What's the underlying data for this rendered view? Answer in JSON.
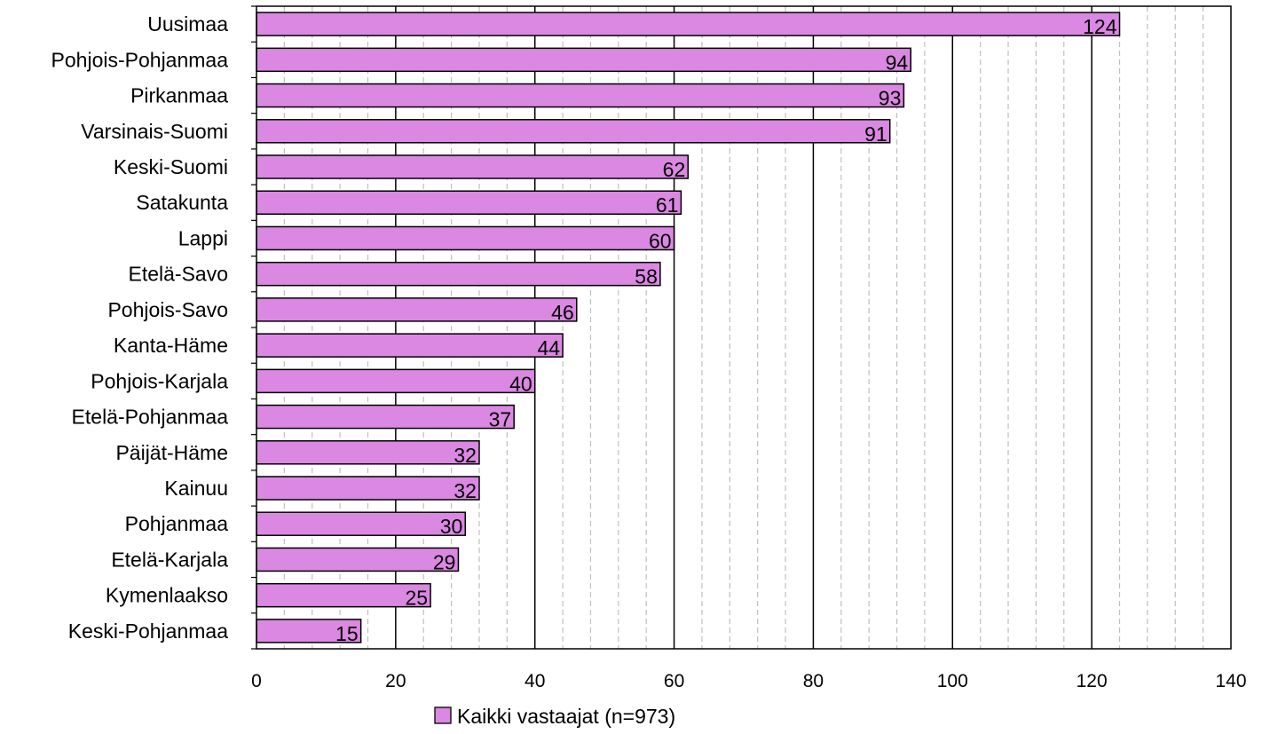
{
  "chart_data": {
    "type": "bar",
    "orientation": "horizontal",
    "categories": [
      "Uusimaa",
      "Pohjois-Pohjanmaa",
      "Pirkanmaa",
      "Varsinais-Suomi",
      "Keski-Suomi",
      "Satakunta",
      "Lappi",
      "Etelä-Savo",
      "Pohjois-Savo",
      "Kanta-Häme",
      "Pohjois-Karjala",
      "Etelä-Pohjanmaa",
      "Päijät-Häme",
      "Kainuu",
      "Pohjanmaa",
      "Etelä-Karjala",
      "Kymenlaakso",
      "Keski-Pohjanmaa"
    ],
    "series": [
      {
        "name": "Kaikki vastaajat (n=973)",
        "values": [
          124,
          94,
          93,
          91,
          62,
          61,
          60,
          58,
          46,
          44,
          40,
          37,
          32,
          32,
          30,
          29,
          25,
          15
        ]
      }
    ],
    "xlim": [
      0,
      140
    ],
    "xticks": [
      0,
      20,
      40,
      60,
      80,
      100,
      120,
      140
    ],
    "minor_grid_step": 4,
    "grid": true,
    "data_labels": true,
    "legend_position": "bottom",
    "title": "",
    "xlabel": "",
    "ylabel": "",
    "colors": {
      "bar_fill": "#da88e2",
      "bar_stroke": "#000000",
      "major_grid": "#000000",
      "minor_grid": "#bfbfbf"
    }
  }
}
